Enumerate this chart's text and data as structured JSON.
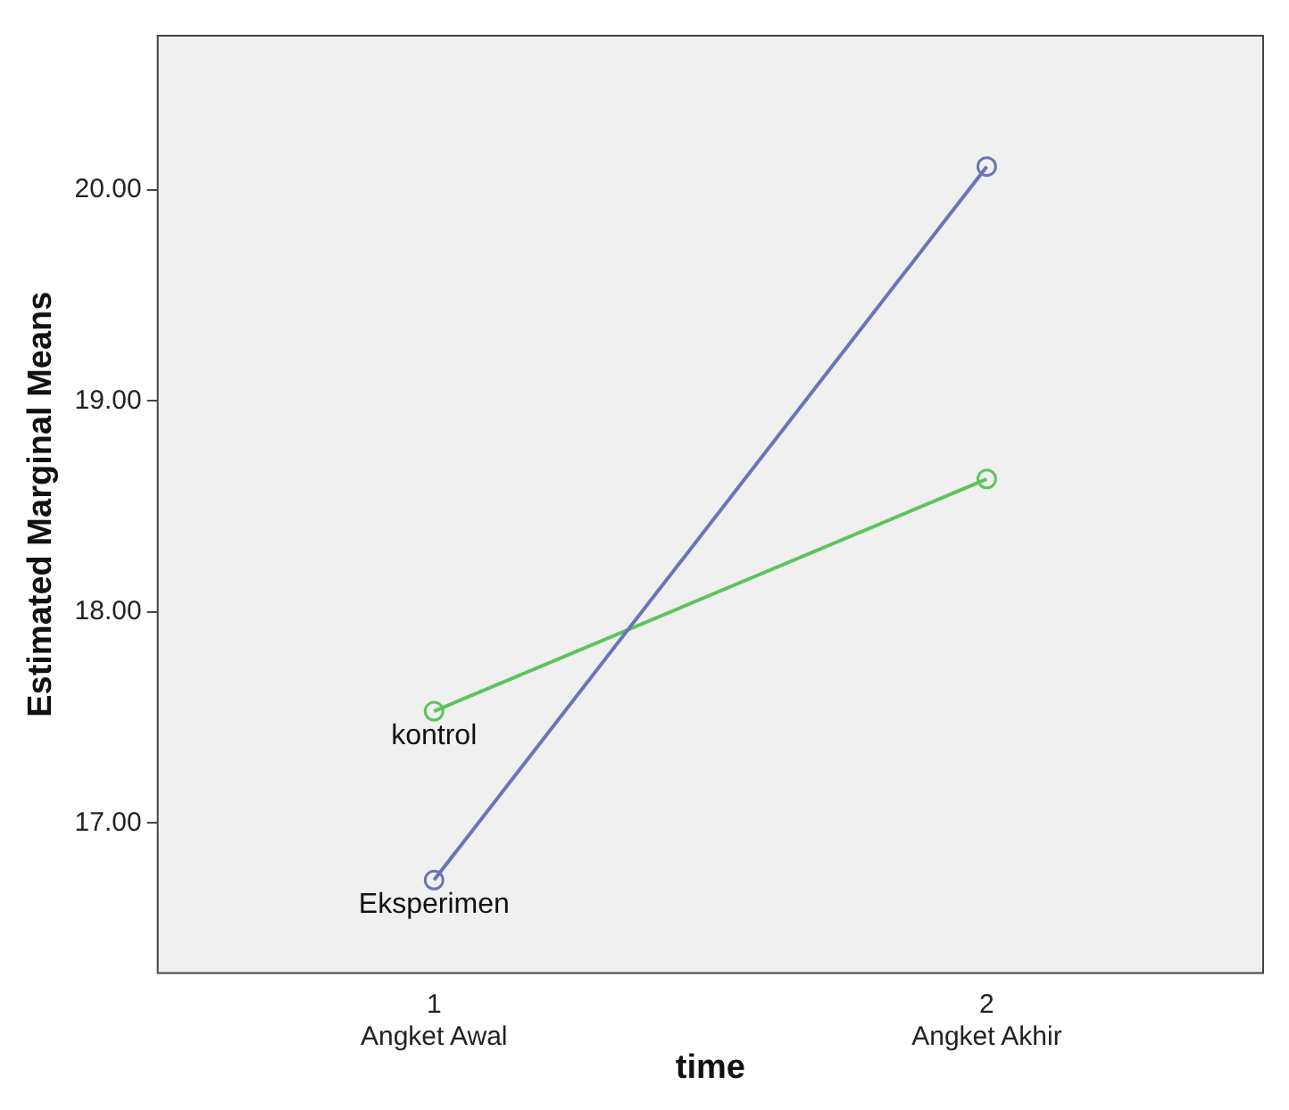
{
  "chart_data": {
    "type": "line",
    "xlabel": "time",
    "ylabel": "Estimated Marginal Means",
    "categories": [
      "1\nAngket Awal",
      "2\nAngket Akhir"
    ],
    "series": [
      {
        "name": "Eksperimen",
        "color": "#6b74b8",
        "values": [
          16.73,
          20.11
        ]
      },
      {
        "name": "kontrol",
        "color": "#5cc45c",
        "values": [
          17.53,
          18.63
        ]
      }
    ],
    "ylim": [
      16.29,
      20.73
    ],
    "yticks": [
      {
        "value": 17,
        "label": "17.00"
      },
      {
        "value": 18,
        "label": "18.00"
      },
      {
        "value": 19,
        "label": "19.00"
      },
      {
        "value": 20,
        "label": "20.00"
      }
    ],
    "grid": false,
    "legend": false,
    "marker": "circle",
    "line_style": "solid"
  }
}
